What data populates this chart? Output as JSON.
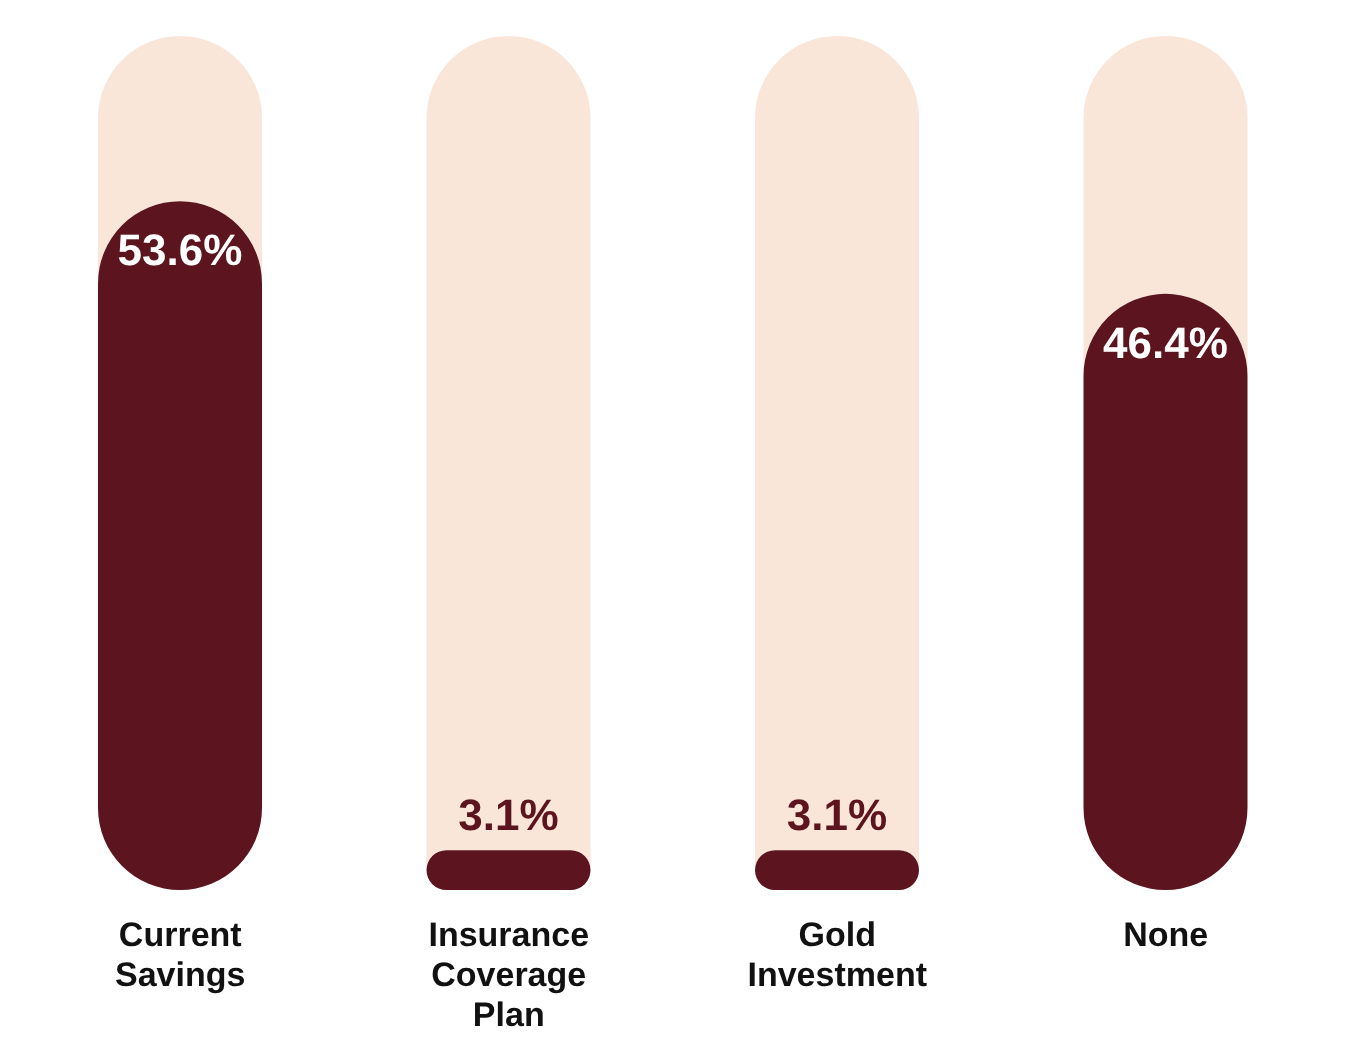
{
  "chart_data": {
    "type": "bar",
    "categories": [
      "Current Savings",
      "Insurance Coverage Plan",
      "Gold Investment",
      "None"
    ],
    "values": [
      53.6,
      3.1,
      3.1,
      46.4
    ],
    "color": "#5c141e",
    "data_labels": true,
    "value_labels": [
      "53.6%",
      "3.1%",
      "3.1%",
      "46.4%"
    ]
  }
}
